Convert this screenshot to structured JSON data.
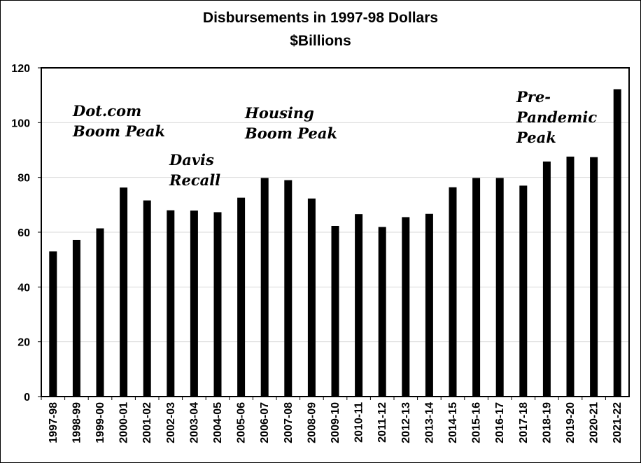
{
  "chart_data": {
    "type": "bar",
    "title": "Disbursements in 1997-98 Dollars",
    "subtitle": "$Billions",
    "xlabel": "",
    "ylabel": "",
    "ylim": [
      0,
      120
    ],
    "yticks": [
      0,
      20,
      40,
      60,
      80,
      100,
      120
    ],
    "grid": true,
    "legend": "none",
    "bar_color": "#000000",
    "categories": [
      "1997-98",
      "1998-99",
      "1999-00",
      "2000-01",
      "2001-02",
      "2002-03",
      "2003-04",
      "2004-05",
      "2005-06",
      "2006-07",
      "2007-08",
      "2008-09",
      "2009-10",
      "2010-11",
      "2011-12",
      "2012-13",
      "2013-14",
      "2014-15",
      "2015-16",
      "2016-17",
      "2017-18",
      "2018-19",
      "2019-20",
      "2020-21",
      "2021-22"
    ],
    "values": [
      53,
      57.2,
      61.4,
      76.3,
      71.6,
      68,
      67.9,
      67.3,
      72.6,
      79.8,
      79,
      72.3,
      62.3,
      66.6,
      61.9,
      65.5,
      66.7,
      76.4,
      79.8,
      79.8,
      77,
      85.8,
      87.6,
      87.4,
      112.2
    ],
    "annotations": [
      {
        "id": "dotcom",
        "lines": [
          "Dot.com",
          "Boom Peak"
        ]
      },
      {
        "id": "davis",
        "lines": [
          "Davis",
          "Recall"
        ]
      },
      {
        "id": "housing",
        "lines": [
          "Housing",
          "Boom Peak"
        ]
      },
      {
        "id": "prepandemic",
        "lines": [
          "Pre-",
          "Pandemic",
          "Peak"
        ]
      }
    ]
  }
}
